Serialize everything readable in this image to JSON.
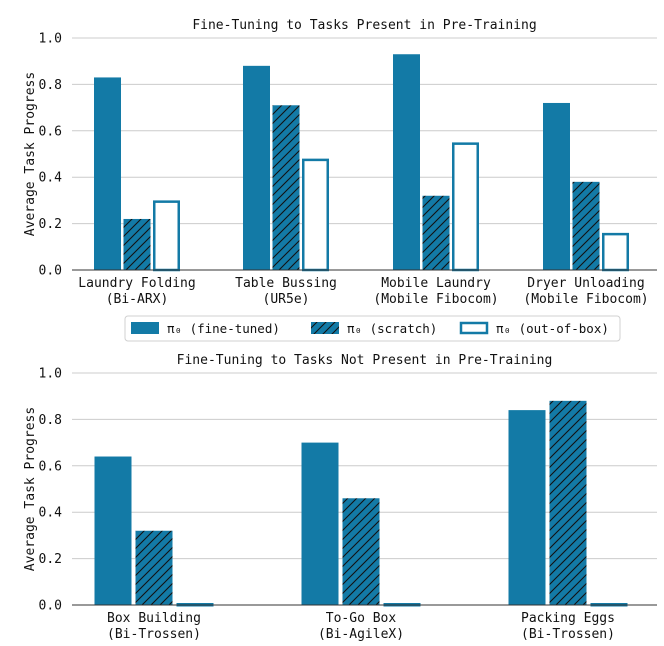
{
  "colors": {
    "bar": "#137aa6",
    "grid": "#cccccc",
    "axis": "#333333",
    "text": "#111111"
  },
  "legend": {
    "items": [
      {
        "label": "π₀ (fine-tuned)",
        "style": "solid"
      },
      {
        "label": "π₀ (scratch)",
        "style": "hatched"
      },
      {
        "label": "π₀ (out-of-box)",
        "style": "outline"
      }
    ]
  },
  "chart_data": [
    {
      "type": "bar",
      "title": "Fine-Tuning to Tasks Present in Pre-Training",
      "ylabel": "Average Task Progress",
      "xlabel": "",
      "ylim": [
        0,
        1.0
      ],
      "yticks": [
        "0.0",
        "0.2",
        "0.4",
        "0.6",
        "0.8",
        "1.0"
      ],
      "grid": "horizontal",
      "categories": [
        [
          "Laundry Folding",
          "(Bi-ARX)"
        ],
        [
          "Table Bussing",
          "(UR5e)"
        ],
        [
          "Mobile Laundry",
          "(Mobile Fibocom)"
        ],
        [
          "Dryer Unloading",
          "(Mobile Fibocom)"
        ]
      ],
      "series": [
        {
          "name": "π₀ (fine-tuned)",
          "style": "solid",
          "values": [
            0.83,
            0.88,
            0.93,
            0.72
          ]
        },
        {
          "name": "π₀ (scratch)",
          "style": "hatched",
          "values": [
            0.22,
            0.71,
            0.32,
            0.38
          ]
        },
        {
          "name": "π₀ (out-of-box)",
          "style": "outline",
          "values": [
            0.3,
            0.48,
            0.55,
            0.16
          ]
        }
      ]
    },
    {
      "type": "bar",
      "title": "Fine-Tuning to Tasks Not Present in Pre-Training",
      "ylabel": "Average Task Progress",
      "xlabel": "",
      "ylim": [
        0,
        1.0
      ],
      "yticks": [
        "0.0",
        "0.2",
        "0.4",
        "0.6",
        "0.8",
        "1.0"
      ],
      "grid": "horizontal",
      "categories": [
        [
          "Box Building",
          "(Bi-Trossen)"
        ],
        [
          "To-Go Box",
          "(Bi-AgileX)"
        ],
        [
          "Packing Eggs",
          "(Bi-Trossen)"
        ]
      ],
      "series": [
        {
          "name": "π₀ (fine-tuned)",
          "style": "solid",
          "values": [
            0.64,
            0.7,
            0.84
          ]
        },
        {
          "name": "π₀ (scratch)",
          "style": "hatched",
          "values": [
            0.32,
            0.46,
            0.88
          ]
        },
        {
          "name": "π₀ (out-of-box)",
          "style": "outline",
          "values": [
            0.0,
            0.0,
            0.0
          ]
        }
      ]
    }
  ]
}
